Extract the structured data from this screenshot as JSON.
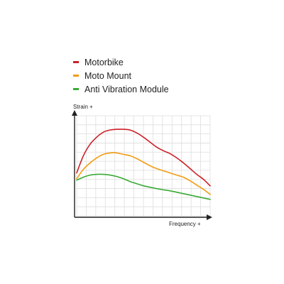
{
  "legend": {
    "items": [
      {
        "label": "Motorbike",
        "color": "#cc2027"
      },
      {
        "label": "Moto Mount",
        "color": "#f39c12"
      },
      {
        "label": "Anti Vibration Module",
        "color": "#3aaa35"
      }
    ]
  },
  "chart_data": {
    "type": "line",
    "xlabel": "Frequency +",
    "ylabel": "Strain +",
    "xlim": [
      0,
      10
    ],
    "ylim": [
      0,
      7
    ],
    "grid": true,
    "legend_position": "top-left",
    "x": [
      0,
      0.5,
      1,
      1.5,
      2,
      2.5,
      3,
      3.5,
      4,
      4.5,
      5,
      5.5,
      6,
      6.5,
      7,
      7.5,
      8,
      8.5,
      9,
      9.5,
      10
    ],
    "series": [
      {
        "name": "Motorbike",
        "color": "#cc2027",
        "values": [
          3.0,
          4.2,
          5.0,
          5.5,
          5.85,
          6.0,
          6.05,
          6.05,
          6.0,
          5.8,
          5.5,
          5.15,
          4.8,
          4.55,
          4.35,
          4.05,
          3.7,
          3.3,
          2.9,
          2.55,
          2.1
        ]
      },
      {
        "name": "Moto Mount",
        "color": "#f39c12",
        "values": [
          2.6,
          3.25,
          3.7,
          4.05,
          4.3,
          4.4,
          4.4,
          4.3,
          4.2,
          4.0,
          3.75,
          3.5,
          3.3,
          3.15,
          3.0,
          2.85,
          2.7,
          2.45,
          2.15,
          1.85,
          1.5
        ]
      },
      {
        "name": "Anti Vibration Module",
        "color": "#3aaa35",
        "values": [
          2.5,
          2.7,
          2.85,
          2.9,
          2.9,
          2.85,
          2.75,
          2.6,
          2.4,
          2.25,
          2.1,
          2.0,
          1.9,
          1.82,
          1.75,
          1.65,
          1.55,
          1.45,
          1.35,
          1.25,
          1.15
        ]
      }
    ]
  }
}
